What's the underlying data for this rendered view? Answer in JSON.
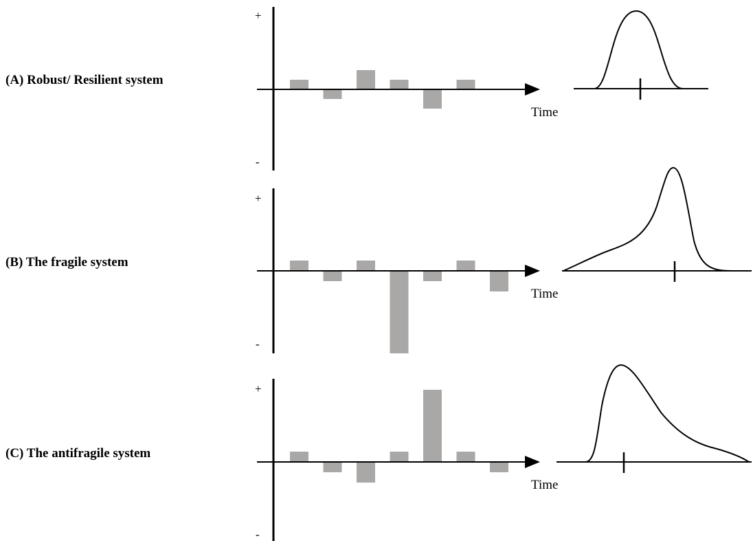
{
  "time_label": "Time",
  "plus_sign": "+",
  "minus_sign": "-",
  "colors": {
    "bar": "#aaa7a7",
    "axis": "#000000",
    "curve": "#000000"
  },
  "panels": [
    {
      "id": "A",
      "label": "(A) Robust/ Resilient system",
      "bars": [
        0.5,
        -0.5,
        1.0,
        0.5,
        -1.0,
        0.5
      ],
      "distribution": "symmetric"
    },
    {
      "id": "B",
      "label": "(B) The fragile system",
      "bars": [
        0.5,
        -0.5,
        0.5,
        -4.0,
        -0.5,
        0.5,
        -1.0
      ],
      "distribution": "left-skewed"
    },
    {
      "id": "C",
      "label": "(C) The antifragile system",
      "bars": [
        0.5,
        -0.5,
        -1.0,
        0.5,
        3.5,
        0.5,
        -0.5
      ],
      "distribution": "right-skewed"
    }
  ]
}
